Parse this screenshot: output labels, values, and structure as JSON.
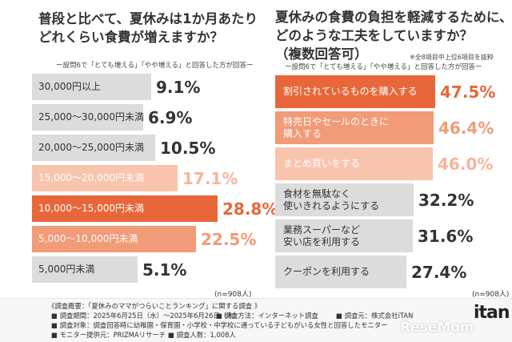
{
  "chart_data": [
    {
      "type": "bar",
      "orientation": "horizontal",
      "title": "普段と比べて、夏休みは1か月あたり\nどれくらい食費が増えますか？",
      "subtitle": "ー設問6で「とても増える」「やや増える」と回答した方が回答ー",
      "categories": [
        "30,000円以上",
        "25,000〜30,000円未満",
        "20,000〜25,000円未満",
        "15,000〜20,000円未満",
        "10,000〜15,000円未満",
        "5,000〜10,000円未満",
        "5,000円未満"
      ],
      "value_labels": [
        "9.1%",
        "6.9%",
        "10.5%",
        "17.1%",
        "28.8%",
        "22.5%",
        "5.1%"
      ],
      "values": [
        9.1,
        6.9,
        10.5,
        17.1,
        28.8,
        22.5,
        5.1
      ],
      "colors": [
        "#dcdcdc",
        "#dcdcdc",
        "#dcdcdc",
        "#f8c4ad",
        "#e8673a",
        "#f19b78",
        "#dcdcdc"
      ],
      "label_colors": [
        "#333333",
        "#333333",
        "#333333",
        "#ffffff",
        "#ffffff",
        "#ffffff",
        "#333333"
      ],
      "value_colors": [
        "#333333",
        "#333333",
        "#333333",
        "#f6b59a",
        "#e8673a",
        "#f19b78",
        "#333333"
      ],
      "n": "(n=908人)"
    },
    {
      "type": "bar",
      "orientation": "horizontal",
      "title": "夏休みの食費の負担を軽減するために、\nどのような工夫をしていますか？\n（複数回答可）",
      "note": "※全8項目中上位6項目を抜粋",
      "subtitle": "ー設問6で「とても増える」「やや増える」と回答した方が回答ー",
      "categories": [
        "割引されているものを購入する",
        "特売日やセールのときに\n購入する",
        "まとめ買いをする",
        "食材を無駄なく\n使いきれるようにする",
        "業務スーパーなど\n安い店を利用する",
        "クーポンを利用する"
      ],
      "value_labels": [
        "47.5%",
        "46.4%",
        "46.0%",
        "32.2%",
        "31.6%",
        "27.4%"
      ],
      "values": [
        47.5,
        46.4,
        46.0,
        32.2,
        31.6,
        27.4
      ],
      "colors": [
        "#e8673a",
        "#f19b78",
        "#f8c4ad",
        "#dcdcdc",
        "#dcdcdc",
        "#dcdcdc"
      ],
      "label_colors": [
        "#ffffff",
        "#ffffff",
        "#ffffff",
        "#333333",
        "#333333",
        "#333333"
      ],
      "value_colors": [
        "#e8673a",
        "#f19b78",
        "#f6b59a",
        "#333333",
        "#333333",
        "#333333"
      ],
      "n": "(n=908人)"
    }
  ],
  "footer": {
    "line1": "《調査概要：「夏休みのママがつらいことランキング」に関する調査 》",
    "line2a": "■ 調査期間：2025年6月25日（水）〜2025年6月26日（木）",
    "line2b": "■ 調査方法：インターネット調査",
    "line2c": "■ 調査元：株式会社iTAN",
    "line3": "■ 調査対象：調査回答時に幼稚園・保育園・小学校・中学校に通っている子どもがいる女性と回答したモニター",
    "line4a": "■ モニター提供元：PRIZMAリサーチ",
    "line4b": "■ 調査人数：1,008人"
  },
  "logo_text": "itan",
  "watermark_text": "ReseMom"
}
